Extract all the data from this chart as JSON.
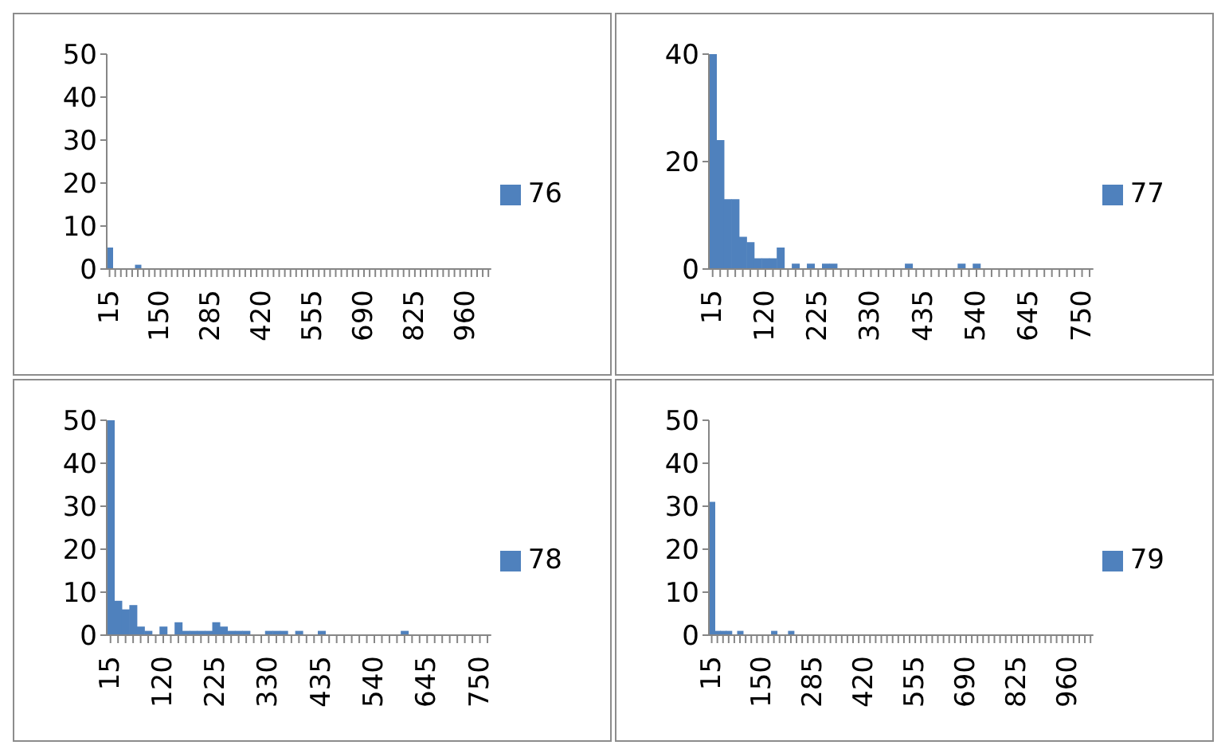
{
  "chart_data": [
    {
      "type": "bar",
      "categories": [
        "15",
        null,
        null,
        null,
        null,
        null,
        null,
        null,
        null,
        "150",
        null,
        null,
        null,
        null,
        null,
        null,
        null,
        null,
        "285",
        null,
        null,
        null,
        null,
        null,
        null,
        null,
        null,
        "420",
        null,
        null,
        null,
        null,
        null,
        null,
        null,
        null,
        "555",
        null,
        null,
        null,
        null,
        null,
        null,
        null,
        null,
        "690",
        null,
        null,
        null,
        null,
        null,
        null,
        null,
        null,
        "825",
        null,
        null,
        null,
        null,
        null,
        null,
        null,
        null,
        "960",
        null,
        null,
        null,
        null
      ],
      "series": [
        {
          "name": "76",
          "color": "#4f81bd",
          "values": [
            5,
            0,
            0,
            0,
            0,
            1,
            0,
            0,
            0,
            0,
            0,
            0,
            0,
            0,
            0,
            0,
            0,
            0,
            0,
            0,
            0,
            0,
            0,
            0,
            0,
            0,
            0,
            0,
            0,
            0,
            0,
            0,
            0,
            0,
            0,
            0,
            0,
            0,
            0,
            0,
            0,
            0,
            0,
            0,
            0,
            0,
            0,
            0,
            0,
            0,
            0,
            0,
            0,
            0,
            0,
            0,
            0,
            0,
            0,
            0,
            0,
            0,
            0,
            0,
            0,
            0,
            0,
            0
          ]
        }
      ],
      "ylim": [
        0,
        50
      ],
      "yticks": [
        0,
        10,
        20,
        30,
        40,
        50
      ],
      "grid": false,
      "legend": "right"
    },
    {
      "type": "bar",
      "categories": [
        "15",
        null,
        null,
        null,
        null,
        null,
        null,
        "120",
        null,
        null,
        null,
        null,
        null,
        null,
        "225",
        null,
        null,
        null,
        null,
        null,
        null,
        "330",
        null,
        null,
        null,
        null,
        null,
        null,
        "435",
        null,
        null,
        null,
        null,
        null,
        null,
        "540",
        null,
        null,
        null,
        null,
        null,
        null,
        "645",
        null,
        null,
        null,
        null,
        null,
        null,
        "750",
        null
      ],
      "series": [
        {
          "name": "77",
          "color": "#4f81bd",
          "values": [
            40,
            24,
            13,
            13,
            6,
            5,
            2,
            2,
            2,
            4,
            0,
            1,
            0,
            1,
            0,
            1,
            1,
            0,
            0,
            0,
            0,
            0,
            0,
            0,
            0,
            0,
            1,
            0,
            0,
            0,
            0,
            0,
            0,
            1,
            0,
            1,
            0,
            0,
            0,
            0,
            0,
            0,
            0,
            0,
            0,
            0,
            0,
            0,
            0,
            0,
            0
          ]
        }
      ],
      "ylim": [
        0,
        40
      ],
      "yticks": [
        0,
        20,
        40
      ],
      "grid": false,
      "legend": "right"
    },
    {
      "type": "bar",
      "categories": [
        "15",
        null,
        null,
        null,
        null,
        null,
        null,
        "120",
        null,
        null,
        null,
        null,
        null,
        null,
        "225",
        null,
        null,
        null,
        null,
        null,
        null,
        "330",
        null,
        null,
        null,
        null,
        null,
        null,
        "435",
        null,
        null,
        null,
        null,
        null,
        null,
        "540",
        null,
        null,
        null,
        null,
        null,
        null,
        "645",
        null,
        null,
        null,
        null,
        null,
        null,
        "750",
        null
      ],
      "series": [
        {
          "name": "78",
          "color": "#4f81bd",
          "values": [
            50,
            8,
            6,
            7,
            2,
            1,
            0,
            2,
            0,
            3,
            1,
            1,
            1,
            1,
            3,
            2,
            1,
            1,
            1,
            0,
            0,
            1,
            1,
            1,
            0,
            1,
            0,
            0,
            1,
            0,
            0,
            0,
            0,
            0,
            0,
            0,
            0,
            0,
            0,
            1,
            0,
            0,
            0,
            0,
            0,
            0,
            0,
            0,
            0,
            0,
            0
          ]
        }
      ],
      "ylim": [
        0,
        50
      ],
      "yticks": [
        0,
        10,
        20,
        30,
        40,
        50
      ],
      "grid": false,
      "legend": "right"
    },
    {
      "type": "bar",
      "categories": [
        "15",
        null,
        null,
        null,
        null,
        null,
        null,
        null,
        null,
        "150",
        null,
        null,
        null,
        null,
        null,
        null,
        null,
        null,
        "285",
        null,
        null,
        null,
        null,
        null,
        null,
        null,
        null,
        "420",
        null,
        null,
        null,
        null,
        null,
        null,
        null,
        null,
        "555",
        null,
        null,
        null,
        null,
        null,
        null,
        null,
        null,
        "690",
        null,
        null,
        null,
        null,
        null,
        null,
        null,
        null,
        "825",
        null,
        null,
        null,
        null,
        null,
        null,
        null,
        null,
        "960",
        null,
        null,
        null,
        null
      ],
      "series": [
        {
          "name": "79",
          "color": "#4f81bd",
          "values": [
            31,
            1,
            1,
            1,
            0,
            1,
            0,
            0,
            0,
            0,
            0,
            1,
            0,
            0,
            1,
            0,
            0,
            0,
            0,
            0,
            0,
            0,
            0,
            0,
            0,
            0,
            0,
            0,
            0,
            0,
            0,
            0,
            0,
            0,
            0,
            0,
            0,
            0,
            0,
            0,
            0,
            0,
            0,
            0,
            0,
            0,
            0,
            0,
            0,
            0,
            0,
            0,
            0,
            0,
            0,
            0,
            0,
            0,
            0,
            0,
            0,
            0,
            0,
            0,
            0,
            0,
            0,
            0
          ]
        }
      ],
      "ylim": [
        0,
        50
      ],
      "yticks": [
        0,
        10,
        20,
        30,
        40,
        50
      ],
      "grid": false,
      "legend": "right"
    }
  ]
}
